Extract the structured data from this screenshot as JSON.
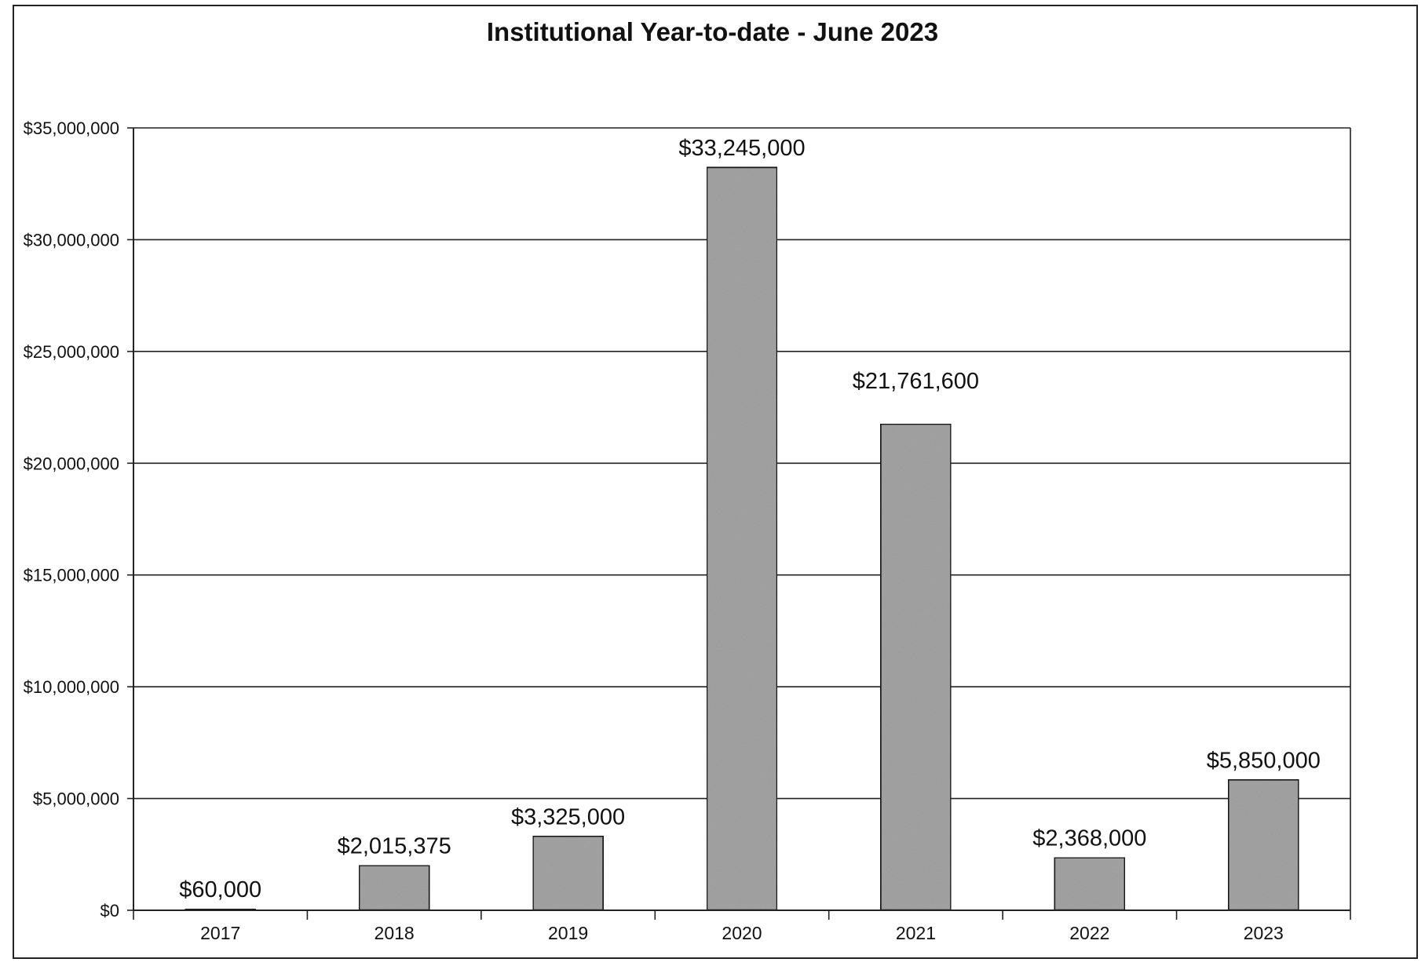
{
  "chart_data": {
    "type": "bar",
    "title": "Institutional Year-to-date - June 2023",
    "xlabel": "",
    "ylabel": "",
    "categories": [
      "2017",
      "2018",
      "2019",
      "2020",
      "2021",
      "2022",
      "2023"
    ],
    "values": [
      60000,
      2015375,
      3325000,
      33245000,
      21761600,
      2368000,
      5850000
    ],
    "data_labels": [
      "$60,000",
      "$2,015,375",
      "$3,325,000",
      "$33,245,000",
      "$21,761,600",
      "$2,368,000",
      "$5,850,000"
    ],
    "ylim": [
      0,
      35000000
    ],
    "yticks": [
      0,
      5000000,
      10000000,
      15000000,
      20000000,
      25000000,
      30000000,
      35000000
    ],
    "ytick_labels": [
      "$0",
      "$5,000,000",
      "$10,000,000",
      "$15,000,000",
      "$20,000,000",
      "$25,000,000",
      "$30,000,000",
      "$35,000,000"
    ],
    "grid": true,
    "legend": "none",
    "colors": {
      "bar": "#a6a6a6",
      "bar_stroke": "#1a1a1a",
      "grid": "#222222"
    }
  }
}
